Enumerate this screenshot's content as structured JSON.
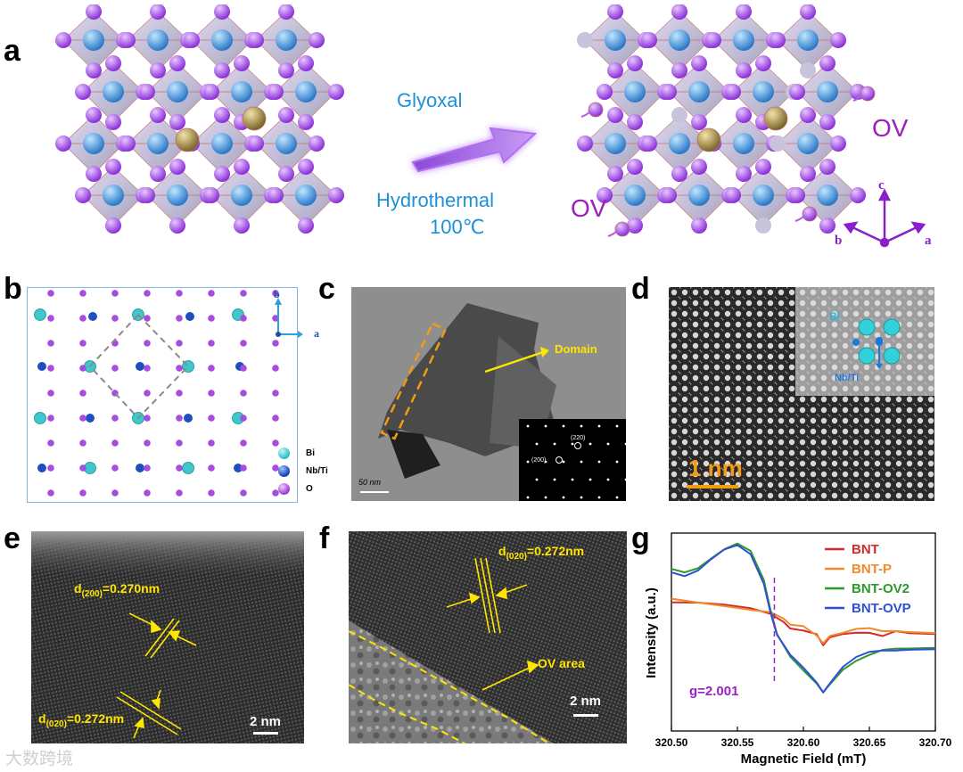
{
  "panels": {
    "a": {
      "label": "a",
      "reagent": "Glyoxal",
      "process": "Hydrothermal",
      "temperature": "100℃",
      "ov_left": "OV",
      "ov_right": "OV",
      "axis_c": "c",
      "axis_a": "a",
      "axis_b": "b"
    },
    "b": {
      "label": "b",
      "axis_b": "b",
      "axis_a": "a",
      "legend": [
        {
          "name": "Bi",
          "color": "#3cc8cc"
        },
        {
          "name": "Nb/Ti",
          "color": "#1f4fbf"
        },
        {
          "name": "O",
          "color": "#a64ce0"
        }
      ]
    },
    "c": {
      "label": "c",
      "annotation": "Domain",
      "scale": "50 nm",
      "saed_220": "(220)",
      "saed_200": "(200)"
    },
    "d": {
      "label": "d",
      "inset_bi": "Bi",
      "inset_nbti": "Nb/Ti",
      "scale": "1 nm"
    },
    "e": {
      "label": "e",
      "d200": "d(200)=0.270nm",
      "d020": "d(020)=0.272nm",
      "scale": "2 nm"
    },
    "f": {
      "label": "f",
      "d020": "d(020)=0.272nm",
      "ov_area": "OV area",
      "scale": "2 nm"
    },
    "g": {
      "label": "g",
      "g_value": "g=2.001"
    }
  },
  "watermark": "大数跨境",
  "chart_data": {
    "type": "line",
    "title": "",
    "xlabel": "Magnetic Field (mT)",
    "ylabel": "Intensity (a.u.)",
    "xlim": [
      320.5,
      320.7
    ],
    "ylim": [
      0,
      1
    ],
    "xticks": [
      "320.50",
      "320.55",
      "320.60",
      "320.65",
      "320.70"
    ],
    "legend_position": "top-right",
    "series": [
      {
        "name": "BNT",
        "color": "#d42a2a",
        "x": [
          320.5,
          320.52,
          320.54,
          320.56,
          320.575,
          320.585,
          320.59,
          320.6,
          320.61,
          320.615,
          320.62,
          320.63,
          320.64,
          320.65,
          320.66,
          320.67,
          320.68,
          320.7
        ],
        "y": [
          0.65,
          0.64,
          0.63,
          0.62,
          0.6,
          0.56,
          0.52,
          0.5,
          0.48,
          0.43,
          0.48,
          0.5,
          0.5,
          0.49,
          0.47,
          0.5,
          0.5,
          0.5
        ]
      },
      {
        "name": "BNT-P",
        "color": "#f08a2a",
        "x": [
          320.5,
          320.52,
          320.54,
          320.56,
          320.575,
          320.585,
          320.59,
          320.6,
          320.61,
          320.615,
          320.62,
          320.63,
          320.64,
          320.65,
          320.66,
          320.67,
          320.68,
          320.7
        ],
        "y": [
          0.66,
          0.64,
          0.63,
          0.62,
          0.61,
          0.57,
          0.53,
          0.52,
          0.48,
          0.45,
          0.49,
          0.5,
          0.51,
          0.51,
          0.5,
          0.51,
          0.51,
          0.5
        ]
      },
      {
        "name": "BNT-OV2",
        "color": "#2a9a2a",
        "x": [
          320.5,
          320.51,
          320.52,
          320.53,
          320.54,
          320.55,
          320.56,
          320.57,
          320.575,
          320.58,
          320.59,
          320.6,
          320.61,
          320.615,
          320.62,
          320.63,
          320.64,
          320.65,
          320.66,
          320.67,
          320.68,
          320.7
        ],
        "y": [
          0.81,
          0.8,
          0.83,
          0.88,
          0.92,
          0.94,
          0.9,
          0.76,
          0.62,
          0.5,
          0.38,
          0.3,
          0.23,
          0.19,
          0.24,
          0.32,
          0.36,
          0.38,
          0.4,
          0.41,
          0.42,
          0.43
        ]
      },
      {
        "name": "BNT-OVP",
        "color": "#2f4fd8",
        "x": [
          320.5,
          320.51,
          320.52,
          320.53,
          320.54,
          320.55,
          320.56,
          320.57,
          320.575,
          320.58,
          320.59,
          320.6,
          320.61,
          320.615,
          320.62,
          320.63,
          320.64,
          320.65,
          320.66,
          320.67,
          320.68,
          320.7
        ],
        "y": [
          0.8,
          0.79,
          0.82,
          0.87,
          0.91,
          0.93,
          0.89,
          0.75,
          0.61,
          0.49,
          0.38,
          0.31,
          0.24,
          0.2,
          0.25,
          0.33,
          0.37,
          0.39,
          0.4,
          0.41,
          0.42,
          0.42
        ]
      }
    ],
    "annotation": {
      "text": "g=2.001",
      "x": 320.578
    }
  }
}
